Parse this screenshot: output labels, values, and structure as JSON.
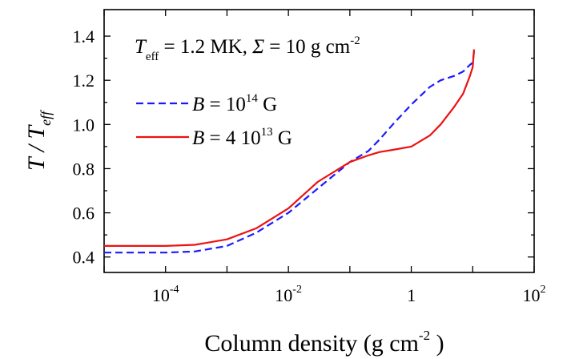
{
  "chart_data": {
    "type": "line",
    "x_scale": "log",
    "xlim": [
      1e-05,
      100
    ],
    "ylim": [
      0.33,
      1.52
    ],
    "grid": false,
    "legend_placement": "top-left",
    "annotation": {
      "teff_label": "T",
      "teff_sub": "eff",
      "teff_value": " = 1.2 MK,  ",
      "sigma": "Σ",
      "sigma_value": " = 10 g cm",
      "sigma_exp": "-2"
    },
    "ylabel": {
      "main": "T / T",
      "sub": "eff"
    },
    "xlabel": {
      "main": "Column density  (g cm",
      "exp": "-2",
      "close": " )"
    },
    "x_ticks": [
      {
        "value": 0.0001,
        "base": "10",
        "exp": "-4"
      },
      {
        "value": 0.01,
        "base": "10",
        "exp": "-2"
      },
      {
        "value": 1,
        "base": "1",
        "exp": ""
      },
      {
        "value": 100,
        "base": "10",
        "exp": "2"
      }
    ],
    "y_ticks": [
      {
        "value": 0.4,
        "label": "0.4"
      },
      {
        "value": 0.6,
        "label": "0.6"
      },
      {
        "value": 0.8,
        "label": "0.8"
      },
      {
        "value": 1.0,
        "label": "1.0"
      },
      {
        "value": 1.2,
        "label": "1.2"
      },
      {
        "value": 1.4,
        "label": "1.4"
      }
    ],
    "series": [
      {
        "legend_pre": "B",
        "legend_mid": " = 10",
        "legend_exp": "14",
        "legend_post": " G",
        "color": "#1a1aff",
        "dash": "dashed",
        "x": [
          1e-05,
          0.0001,
          0.0003,
          0.001,
          0.003,
          0.01,
          0.03,
          0.1,
          0.2,
          0.3,
          0.5,
          1,
          2,
          3,
          5,
          7,
          9,
          10,
          10.5
        ],
        "y": [
          0.42,
          0.42,
          0.425,
          0.45,
          0.51,
          0.6,
          0.71,
          0.83,
          0.88,
          0.93,
          1.0,
          1.09,
          1.17,
          1.2,
          1.22,
          1.24,
          1.27,
          1.28,
          1.33
        ]
      },
      {
        "legend_pre": "B",
        "legend_mid": " = 4 10",
        "legend_exp": "13",
        "legend_post": " G",
        "color": "#ee1111",
        "dash": "solid",
        "x": [
          1e-05,
          0.0001,
          0.0003,
          0.001,
          0.003,
          0.01,
          0.03,
          0.1,
          0.2,
          0.3,
          0.5,
          1,
          2,
          3,
          5,
          7,
          9,
          10,
          10.5
        ],
        "y": [
          0.45,
          0.45,
          0.455,
          0.48,
          0.53,
          0.62,
          0.74,
          0.83,
          0.86,
          0.875,
          0.885,
          0.9,
          0.95,
          1.0,
          1.08,
          1.14,
          1.22,
          1.26,
          1.34
        ]
      }
    ]
  }
}
